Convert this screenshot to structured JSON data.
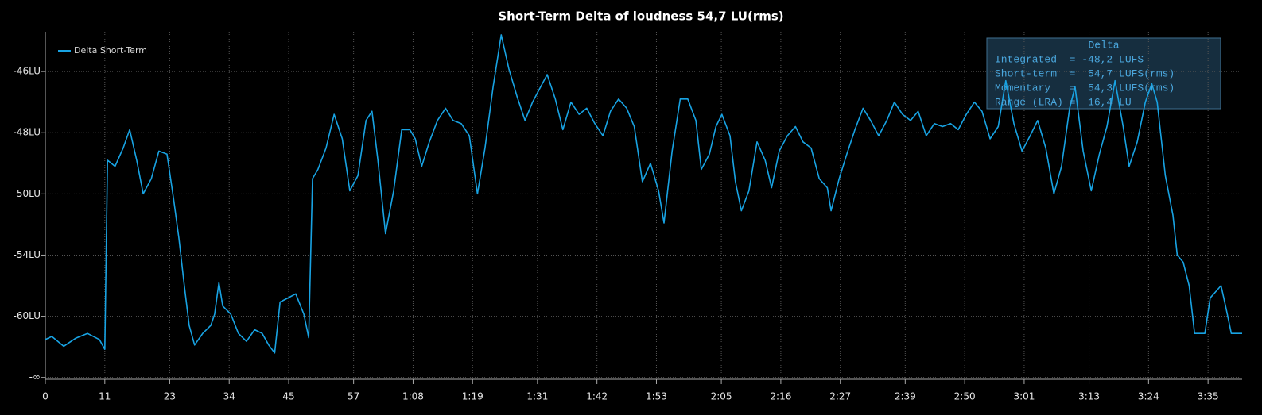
{
  "chart_data": {
    "type": "line",
    "title": "Short-Term Delta of loudness 54,7 LU(rms)",
    "x": [
      0,
      1.2,
      3.4,
      5.6,
      7.8,
      10,
      11,
      11.5,
      12.9,
      14.4,
      15.6,
      16.9,
      18.1,
      19.6,
      21,
      22.5,
      23.7,
      24.7,
      25.7,
      26.6,
      27.6,
      29.1,
      30.6,
      31.3,
      32.1,
      32.8,
      34.3,
      35.7,
      37.2,
      38.7,
      40.1,
      41.3,
      42.4,
      43.4,
      44.9,
      46.3,
      47.8,
      48.7,
      49.4,
      50.4,
      51.9,
      53.4,
      54.9,
      56.3,
      57.8,
      59.3,
      60.4,
      61.5,
      62.9,
      64.4,
      65.9,
      67.4,
      68.4,
      69.6,
      71,
      72.5,
      74,
      75.4,
      76.9,
      78.4,
      79.9,
      81.3,
      82.8,
      84.3,
      85.7,
      87.2,
      88.7,
      90.1,
      91.6,
      92.8,
      94.3,
      95.7,
      97.2,
      98.7,
      100.1,
      101.6,
      103.1,
      104.5,
      106,
      107.5,
      108.9,
      110.4,
      111.9,
      113.4,
      114.4,
      115.9,
      117.4,
      118.8,
      120.3,
      121.3,
      122.8,
      124,
      125.1,
      126.6,
      127.6,
      128.7,
      130.1,
      131.6,
      133.1,
      134.3,
      135.7,
      137.2,
      138.7,
      140.1,
      141.6,
      143.1,
      144.6,
      145.3,
      146.8,
      148.2,
      149.7,
      151.2,
      152.6,
      154.1,
      155.6,
      157,
      158.5,
      160,
      161.4,
      162.9,
      164.4,
      165.9,
      167.4,
      168.8,
      170.3,
      171.8,
      173.2,
      174.7,
      176.2,
      177.6,
      179.1,
      180.6,
      182.1,
      183.5,
      185,
      186.5,
      187.9,
      189.4,
      190.4,
      191.9,
      193.4,
      194.9,
      196.3,
      197.8,
      199.3,
      200.4,
      201.9,
      203.4,
      204.6,
      205.6,
      207.1,
      208.5,
      209.3,
      210.4,
      211.5,
      212.5,
      214.4,
      215.4,
      217.4,
      218.4,
      219.3,
      221.3
    ],
    "series": [
      {
        "name": "Delta Short-Term",
        "color": "#18a3e3",
        "values": [
          -63.8,
          -63.3,
          -64.9,
          -63.6,
          -62.8,
          -63.8,
          -65.4,
          -48.9,
          -49.1,
          -48.5,
          -47.9,
          -48.9,
          -50.0,
          -49.5,
          -48.6,
          -48.7,
          -50.3,
          -52.9,
          -57.0,
          -61.5,
          -64.7,
          -62.8,
          -61.5,
          -59.8,
          -56.7,
          -59.0,
          -59.8,
          -62.8,
          -64.1,
          -62.2,
          -62.8,
          -64.7,
          -66.0,
          -58.6,
          -58.2,
          -57.8,
          -59.8,
          -63.5,
          -49.5,
          -49.2,
          -48.5,
          -47.4,
          -48.2,
          -49.9,
          -49.4,
          -47.6,
          -47.3,
          -48.9,
          -52.6,
          -49.9,
          -47.9,
          -47.9,
          -48.2,
          -49.1,
          -48.3,
          -47.6,
          -47.2,
          -47.6,
          -47.7,
          -48.1,
          -50.0,
          -48.5,
          -46.5,
          -44.8,
          -45.9,
          -46.8,
          -47.6,
          -47.0,
          -46.5,
          -46.1,
          -46.9,
          -47.9,
          -47.0,
          -47.4,
          -47.2,
          -47.7,
          -48.1,
          -47.3,
          -46.9,
          -47.2,
          -47.8,
          -49.6,
          -49.0,
          -49.9,
          -51.9,
          -48.6,
          -46.9,
          -46.9,
          -47.6,
          -49.2,
          -48.7,
          -47.8,
          -47.4,
          -48.1,
          -49.6,
          -51.1,
          -49.9,
          -48.3,
          -48.9,
          -49.8,
          -48.6,
          -48.1,
          -47.8,
          -48.3,
          -48.5,
          -49.5,
          -49.8,
          -51.1,
          -49.5,
          -48.7,
          -47.9,
          -47.2,
          -47.6,
          -48.1,
          -47.6,
          -47.0,
          -47.4,
          -47.6,
          -47.3,
          -48.1,
          -47.7,
          -47.8,
          -47.7,
          -47.9,
          -47.4,
          -47.0,
          -47.3,
          -48.2,
          -47.8,
          -46.3,
          -47.7,
          -48.6,
          -48.1,
          -47.6,
          -48.5,
          -50.0,
          -49.1,
          -47.2,
          -46.5,
          -48.6,
          -49.9,
          -48.7,
          -47.8,
          -46.3,
          -47.8,
          -49.1,
          -48.3,
          -47.0,
          -46.4,
          -47.0,
          -49.4,
          -51.4,
          -54.0,
          -54.7,
          -57.0,
          -62.8,
          -62.8,
          -58.2,
          -57.0,
          -59.4,
          -62.8,
          -62.8
        ]
      }
    ],
    "xlim": [
      0,
      221.3
    ],
    "xticks": [
      0,
      11,
      23,
      34,
      45,
      57,
      {
        "value": 68,
        "label": "1:08"
      },
      {
        "value": 79,
        "label": "1:19"
      },
      {
        "value": 91,
        "label": "1:31"
      },
      {
        "value": 102,
        "label": "1:42"
      },
      {
        "value": 113,
        "label": "1:53"
      },
      {
        "value": 125,
        "label": "2:05"
      },
      {
        "value": 136,
        "label": "2:16"
      },
      {
        "value": 147,
        "label": "2:27"
      },
      {
        "value": 159,
        "label": "2:39"
      },
      {
        "value": 170,
        "label": "2:50"
      },
      {
        "value": 181,
        "label": "3:01"
      },
      {
        "value": 193,
        "label": "3:13"
      },
      {
        "value": 204,
        "label": "3:24"
      },
      {
        "value": 215,
        "label": "3:35"
      }
    ],
    "ylim": [
      -70.3,
      -44.7
    ],
    "yscale": "piecewise",
    "yticks": [
      {
        "value": -70,
        "label": "-∞"
      },
      {
        "value": -60,
        "label": "-60LU"
      },
      {
        "value": -54,
        "label": "-54LU"
      },
      {
        "value": -50,
        "label": "-50LU"
      },
      {
        "value": -48,
        "label": "-48LU"
      },
      {
        "value": -46,
        "label": "-46LU"
      }
    ],
    "grid": true,
    "legend": "upper left",
    "annotation": [
      "Delta",
      "Integrated  = -48,2 LUFS",
      "Short-term  =  54,7 LUFS(rms)",
      "Momentary   =  54,3 LUFS(rms)",
      "Range (LRA) =  16,4 LU"
    ]
  }
}
